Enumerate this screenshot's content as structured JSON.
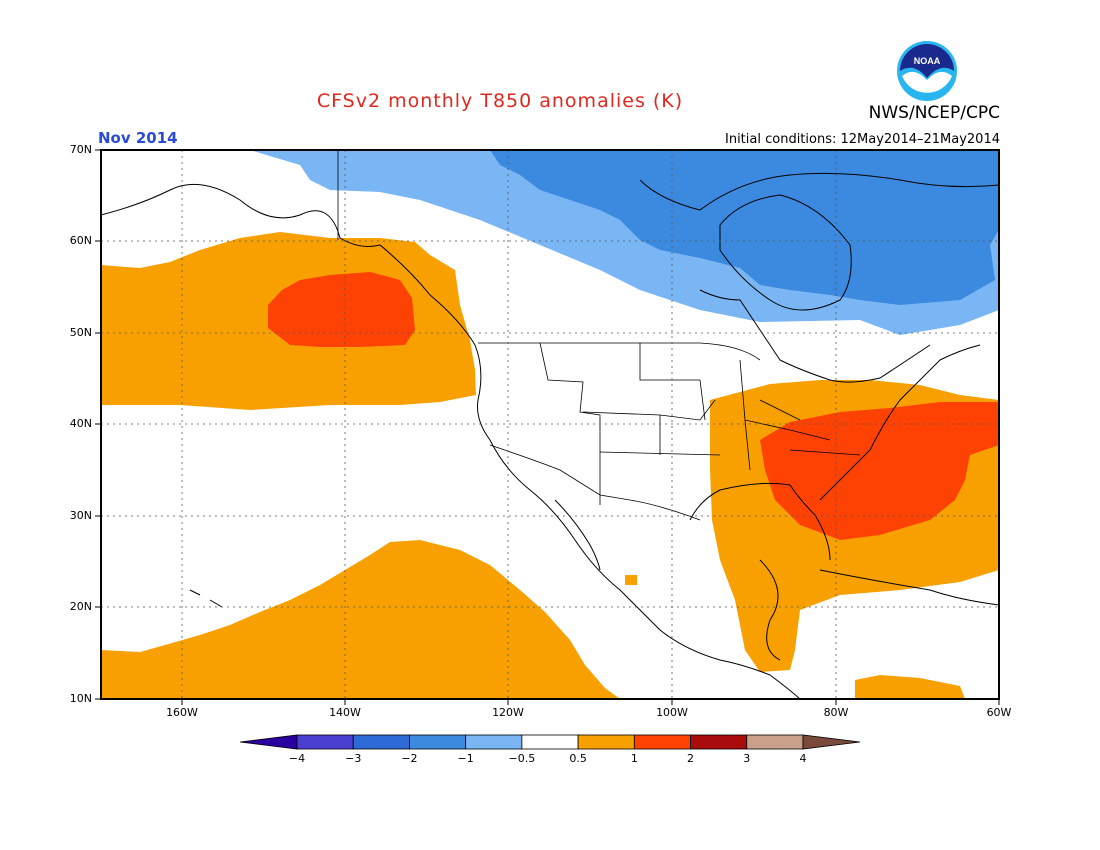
{
  "title": "CFSv2 monthly T850 anomalies (K)",
  "agency": "NWS/NCEP/CPC",
  "logo_text": "NOAA",
  "month_label": "Nov 2014",
  "init_label": "Initial conditions: 12May2014–21May2014",
  "lat_labels": [
    "70N",
    "60N",
    "50N",
    "40N",
    "30N",
    "20N",
    "10N"
  ],
  "lon_labels": [
    "160W",
    "140W",
    "120W",
    "100W",
    "80W",
    "60W"
  ],
  "colorbar": {
    "labels": [
      "−4",
      "−3",
      "−2",
      "−1",
      "−0.5",
      "0.5",
      "1",
      "2",
      "3",
      "4"
    ],
    "colors": [
      "#2a00a0",
      "#4a3fd0",
      "#2e6ad6",
      "#3c8ae0",
      "#7ab6f4",
      "#ffffff",
      "#f7a000",
      "#fe4204",
      "#a80c0c",
      "#c9a089",
      "#7a4a3a"
    ]
  },
  "chart_data": {
    "type": "heatmap",
    "title": "CFSv2 monthly T850 anomalies (K)",
    "valid_month": "Nov 2014",
    "initial_conditions": "12May2014–21May2014",
    "lon_range": [
      "170W",
      "60W"
    ],
    "lat_range": [
      "10N",
      "70N"
    ],
    "anomaly_regions": [
      {
        "level": "-1 to -0.5",
        "color": "#7ab6f4",
        "area": "northern Canada / Arctic band"
      },
      {
        "level": "-2 to -1",
        "color": "#3c8ae0",
        "area": "Hudson Bay and northeastern Canada"
      },
      {
        "level": "0.5 to 1",
        "color": "#f7a000",
        "area": "northeast Pacific / Gulf of Alaska"
      },
      {
        "level": "1 to 2",
        "color": "#fe4204",
        "area": "core of Gulf of Alaska"
      },
      {
        "level": "0.5 to 1",
        "color": "#f7a000",
        "area": "subtropical central Pacific"
      },
      {
        "level": "0.5 to 1",
        "color": "#f7a000",
        "area": "eastern US, Gulf of Mexico, Caribbean"
      },
      {
        "level": "1 to 2",
        "color": "#fe4204",
        "area": "southeastern US and western Atlantic"
      }
    ]
  }
}
